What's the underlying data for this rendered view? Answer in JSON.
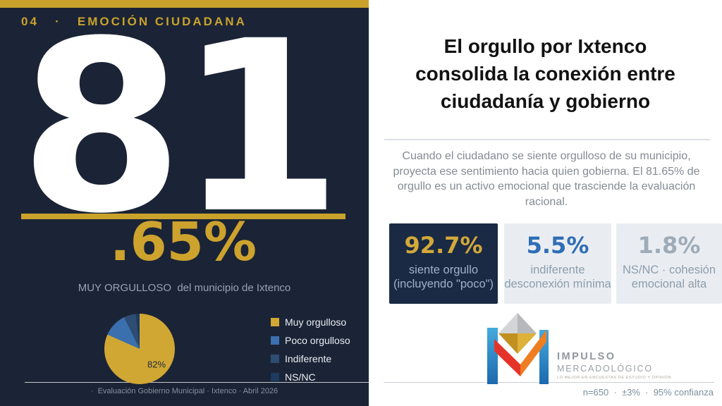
{
  "left": {
    "section_label": "04   ·   EMOCIÓN CIUDADANA",
    "big_number": "81",
    "decimal": ".65%",
    "metric_label": "MUY ORGULLOSO  del municipio de Ixtenco",
    "footer": "·  Evaluación Gobierno Municipal · Ixtenco · Abril 2026"
  },
  "right": {
    "title_lines": [
      "El orgullo por Ixtenco",
      "consolida la conexión entre",
      "ciudadanía y gobierno"
    ],
    "paragraph": "Cuando el ciudadano se siente orgulloso de su municipio, proyecta ese sentimiento hacia quien gobierna. El 81.65% de orgullo es un activo emocional que trasciende la evaluación racional.",
    "cards": [
      {
        "value": "92.7%",
        "line1": "siente orgullo",
        "line2": "(incluyendo \"poco\")"
      },
      {
        "value": "5.5%",
        "line1": "indiferente",
        "line2": "desconexión mínima"
      },
      {
        "value": "1.8%",
        "line1": "NS/NC · cohesión",
        "line2": "emocional alta"
      }
    ],
    "logo": {
      "brand_line1": "IMPULSO",
      "brand_line2": "MERCADOLÓGICO",
      "tagline": "LO MEJOR EN ENCUESTAS DE ESTUDIO Y OPINIÓN"
    },
    "footer": "n=650  ·  ±3%  ·  95% confianza"
  },
  "chart_data": {
    "type": "pie",
    "categories": [
      "Muy orgulloso",
      "Poco orgulloso",
      "Indiferente",
      "NS/NC"
    ],
    "values": [
      81.65,
      11.05,
      5.5,
      1.8
    ],
    "colors": [
      "#d1a733",
      "#3a70ad",
      "#2e4d73",
      "#1d3a5f"
    ],
    "data_label": "82%",
    "legend_position": "right",
    "start_angle_deg": 0,
    "direction": "clockwise"
  },
  "theme": {
    "navy": "#1b2436",
    "gold": "#c9a22c",
    "card_navy": "#1b2a44",
    "card_light": "#e9edf2",
    "muted_text": "#97a2b3"
  }
}
